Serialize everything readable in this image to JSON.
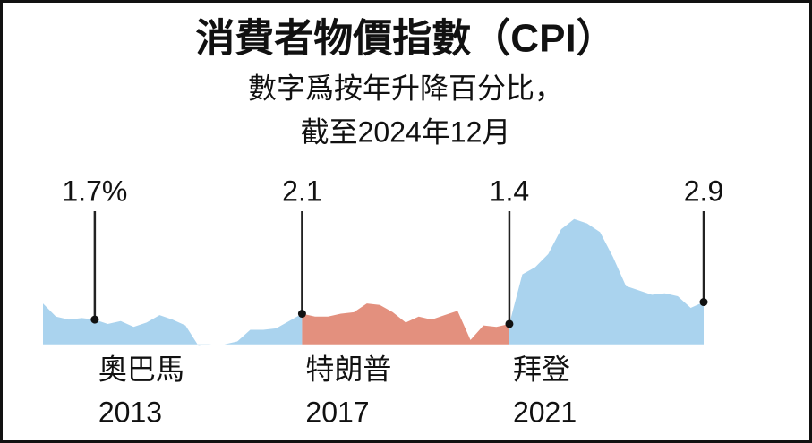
{
  "chart_data": {
    "type": "area",
    "title": "消費者物價指數（CPI）",
    "subtitle": [
      "數字爲按年升降百分比，",
      "截至2024年12月"
    ],
    "categories": [
      null,
      null,
      null,
      null,
      "2013",
      null,
      null,
      null,
      null,
      null,
      null,
      null,
      null,
      null,
      null,
      null,
      null,
      null,
      null,
      null,
      "2017",
      null,
      null,
      null,
      null,
      null,
      null,
      null,
      null,
      null,
      null,
      null,
      null,
      null,
      null,
      null,
      "2021",
      null,
      null,
      null,
      null,
      null,
      null,
      null,
      null,
      null,
      null,
      null,
      null,
      null,
      null,
      null
    ],
    "ylim": [
      -1,
      10
    ],
    "series": [
      {
        "name": "奧巴馬",
        "color": "#aad3ee",
        "values": [
          2.8,
          1.9,
          1.7,
          1.8,
          1.7,
          1.4,
          1.6,
          1.2,
          1.5,
          2.0,
          1.7,
          1.3,
          -0.1,
          0.0,
          0.0,
          0.2,
          1.0,
          1.0,
          1.1,
          1.6,
          2.1,
          null,
          null,
          null,
          null,
          null,
          null,
          null,
          null,
          null,
          null,
          null,
          null,
          null,
          null,
          null,
          null,
          null,
          null,
          null,
          null,
          null,
          null,
          null,
          null,
          null,
          null,
          null,
          null,
          null,
          null,
          null
        ],
        "value_labels": [
          null,
          null,
          null,
          null,
          "1.7%",
          null,
          null,
          null,
          null,
          null,
          null,
          null,
          null,
          null,
          null,
          null,
          null,
          null,
          null,
          null,
          null,
          null,
          null,
          null,
          null,
          null,
          null,
          null,
          null,
          null,
          null,
          null,
          null,
          null,
          null,
          null,
          null,
          null,
          null,
          null,
          null,
          null,
          null,
          null,
          null,
          null,
          null,
          null,
          null,
          null,
          null,
          null
        ]
      },
      {
        "name": "特朗普",
        "color": "#e3907e",
        "values": [
          null,
          null,
          null,
          null,
          null,
          null,
          null,
          null,
          null,
          null,
          null,
          null,
          null,
          null,
          null,
          null,
          null,
          null,
          null,
          null,
          2.1,
          1.9,
          1.9,
          2.1,
          2.2,
          2.8,
          2.7,
          2.2,
          1.5,
          1.9,
          1.7,
          2.0,
          2.3,
          0.3,
          1.3,
          1.2,
          1.4,
          null,
          null,
          null,
          null,
          null,
          null,
          null,
          null,
          null,
          null,
          null,
          null,
          null,
          null,
          null
        ],
        "value_labels": [
          null,
          null,
          null,
          null,
          null,
          null,
          null,
          null,
          null,
          null,
          null,
          null,
          null,
          null,
          null,
          null,
          null,
          null,
          null,
          null,
          "2.1",
          null,
          null,
          null,
          null,
          null,
          null,
          null,
          null,
          null,
          null,
          null,
          null,
          null,
          null,
          null,
          null,
          null,
          null,
          null,
          null,
          null,
          null,
          null,
          null,
          null,
          null,
          null,
          null,
          null,
          null,
          null
        ]
      },
      {
        "name": "拜登",
        "color": "#aad3ee",
        "values": [
          null,
          null,
          null,
          null,
          null,
          null,
          null,
          null,
          null,
          null,
          null,
          null,
          null,
          null,
          null,
          null,
          null,
          null,
          null,
          null,
          null,
          null,
          null,
          null,
          null,
          null,
          null,
          null,
          null,
          null,
          null,
          null,
          null,
          null,
          null,
          null,
          1.4,
          4.8,
          5.3,
          6.2,
          7.9,
          8.6,
          8.3,
          7.7,
          6.0,
          4.0,
          3.7,
          3.4,
          3.5,
          3.3,
          2.5,
          2.9
        ],
        "value_labels": [
          null,
          null,
          null,
          null,
          null,
          null,
          null,
          null,
          null,
          null,
          null,
          null,
          null,
          null,
          null,
          null,
          null,
          null,
          null,
          null,
          null,
          null,
          null,
          null,
          null,
          null,
          null,
          null,
          null,
          null,
          null,
          null,
          null,
          null,
          null,
          null,
          "1.4",
          null,
          null,
          null,
          null,
          null,
          null,
          null,
          null,
          null,
          null,
          null,
          null,
          null,
          null,
          "2.9"
        ]
      }
    ]
  }
}
